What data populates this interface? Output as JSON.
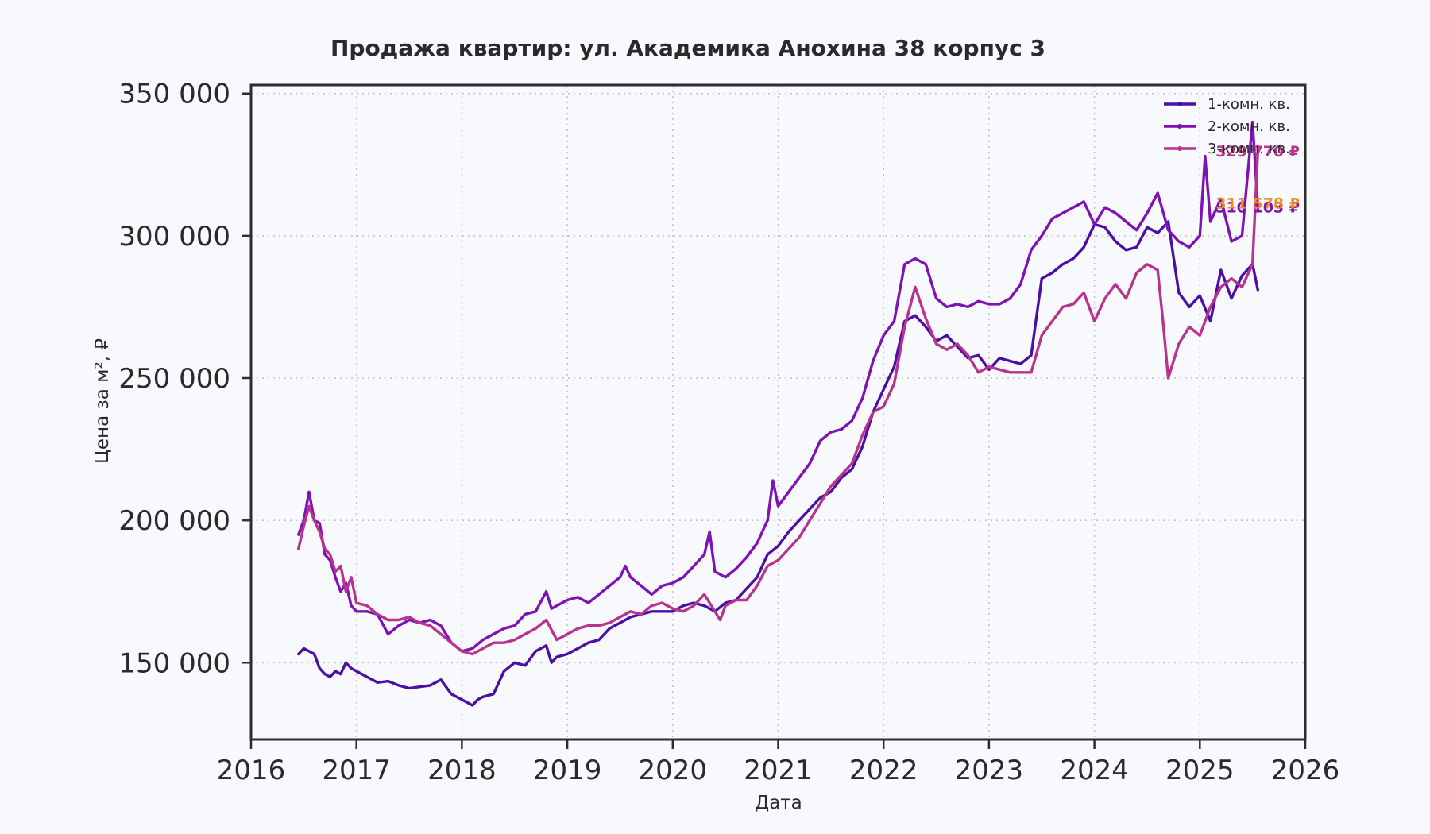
{
  "chart_data": {
    "type": "line",
    "title": "Продажа квартир: ул. Академика Анохина 38 корпус 3",
    "xlabel": "Дата",
    "ylabel": "Цена за м², ₽",
    "xlim": [
      2016.0,
      2026.0
    ],
    "ylim": [
      123000,
      353000
    ],
    "x_ticks": [
      2016,
      2017,
      2018,
      2019,
      2020,
      2021,
      2022,
      2023,
      2024,
      2025,
      2026
    ],
    "x_tick_labels": [
      "2016",
      "2017",
      "2018",
      "2019",
      "2020",
      "2021",
      "2022",
      "2023",
      "2024",
      "2025",
      "2026"
    ],
    "y_ticks": [
      150000,
      200000,
      250000,
      300000,
      350000
    ],
    "y_tick_labels": [
      "150 000",
      "200 000",
      "250 000",
      "300 000",
      "350 000"
    ],
    "grid": true,
    "legend_position": "top-right",
    "series": [
      {
        "name": "1-комн. кв.",
        "color": "#4b0fa6",
        "x": [
          2016.45,
          2016.5,
          2016.55,
          2016.6,
          2016.65,
          2016.7,
          2016.75,
          2016.8,
          2016.85,
          2016.9,
          2016.95,
          2017.0,
          2017.1,
          2017.2,
          2017.3,
          2017.4,
          2017.5,
          2017.6,
          2017.7,
          2017.8,
          2017.9,
          2018.0,
          2018.1,
          2018.15,
          2018.2,
          2018.3,
          2018.4,
          2018.5,
          2018.6,
          2018.7,
          2018.8,
          2018.85,
          2018.9,
          2019.0,
          2019.1,
          2019.2,
          2019.3,
          2019.4,
          2019.5,
          2019.6,
          2019.7,
          2019.8,
          2019.9,
          2020.0,
          2020.1,
          2020.2,
          2020.3,
          2020.4,
          2020.5,
          2020.6,
          2020.7,
          2020.8,
          2020.9,
          2021.0,
          2021.1,
          2021.2,
          2021.3,
          2021.4,
          2021.5,
          2021.6,
          2021.7,
          2021.8,
          2021.9,
          2022.0,
          2022.1,
          2022.2,
          2022.3,
          2022.4,
          2022.5,
          2022.6,
          2022.7,
          2022.8,
          2022.9,
          2023.0,
          2023.1,
          2023.2,
          2023.3,
          2023.4,
          2023.5,
          2023.6,
          2023.7,
          2023.8,
          2023.9,
          2024.0,
          2024.1,
          2024.2,
          2024.3,
          2024.4,
          2024.5,
          2024.6,
          2024.7,
          2024.8,
          2024.9,
          2025.0,
          2025.1,
          2025.2,
          2025.3,
          2025.4,
          2025.5,
          2025.55
        ],
        "y": [
          153000,
          155000,
          154000,
          153000,
          148000,
          146000,
          145000,
          147000,
          146000,
          150000,
          148000,
          147000,
          145000,
          143000,
          143500,
          142000,
          141000,
          141500,
          142000,
          144000,
          139000,
          137000,
          135000,
          137000,
          138000,
          139000,
          147000,
          150000,
          149000,
          154000,
          156000,
          150000,
          152000,
          153000,
          155000,
          157000,
          158000,
          162000,
          164000,
          166000,
          167000,
          168000,
          168000,
          168000,
          170000,
          171000,
          170000,
          168000,
          171000,
          172000,
          176000,
          180000,
          188000,
          191000,
          196000,
          200000,
          204000,
          208000,
          210000,
          215000,
          218000,
          226000,
          238000,
          246000,
          254000,
          270000,
          272000,
          268000,
          263000,
          265000,
          261000,
          257000,
          258000,
          253000,
          257000,
          256000,
          255000,
          258000,
          285000,
          287000,
          290000,
          292000,
          296000,
          304000,
          303000,
          298000,
          295000,
          296000,
          303000,
          301000,
          305000,
          280000,
          275000,
          279000,
          270000,
          288000,
          278000,
          286000,
          290000,
          281000
        ],
        "end_label": null
      },
      {
        "name": "2-комн. кв.",
        "color": "#7e12b5",
        "x": [
          2016.45,
          2016.5,
          2016.55,
          2016.6,
          2016.65,
          2016.7,
          2016.75,
          2016.8,
          2016.85,
          2016.9,
          2016.95,
          2017.0,
          2017.1,
          2017.2,
          2017.3,
          2017.4,
          2017.5,
          2017.6,
          2017.7,
          2017.8,
          2017.9,
          2018.0,
          2018.1,
          2018.2,
          2018.3,
          2018.4,
          2018.5,
          2018.6,
          2018.7,
          2018.8,
          2018.85,
          2018.9,
          2019.0,
          2019.1,
          2019.2,
          2019.3,
          2019.4,
          2019.5,
          2019.55,
          2019.6,
          2019.7,
          2019.8,
          2019.9,
          2020.0,
          2020.1,
          2020.2,
          2020.3,
          2020.35,
          2020.4,
          2020.5,
          2020.6,
          2020.7,
          2020.8,
          2020.9,
          2020.95,
          2021.0,
          2021.1,
          2021.2,
          2021.3,
          2021.4,
          2021.5,
          2021.6,
          2021.7,
          2021.8,
          2021.9,
          2022.0,
          2022.1,
          2022.2,
          2022.3,
          2022.4,
          2022.5,
          2022.6,
          2022.7,
          2022.8,
          2022.9,
          2023.0,
          2023.1,
          2023.2,
          2023.3,
          2023.4,
          2023.5,
          2023.6,
          2023.7,
          2023.8,
          2023.9,
          2024.0,
          2024.1,
          2024.2,
          2024.3,
          2024.4,
          2024.5,
          2024.6,
          2024.7,
          2024.8,
          2024.9,
          2025.0,
          2025.05,
          2025.1,
          2025.2,
          2025.3,
          2025.4,
          2025.5,
          2025.55
        ],
        "y": [
          195000,
          200000,
          210000,
          200000,
          199000,
          188000,
          186000,
          180000,
          175000,
          178000,
          170000,
          168000,
          168000,
          167000,
          160000,
          163000,
          165000,
          164000,
          165000,
          163000,
          157000,
          154000,
          155000,
          158000,
          160000,
          162000,
          163000,
          167000,
          168000,
          175000,
          169000,
          170000,
          172000,
          173000,
          171000,
          174000,
          177000,
          180000,
          184000,
          180000,
          177000,
          174000,
          177000,
          178000,
          180000,
          184000,
          188000,
          196000,
          182000,
          180000,
          183000,
          187000,
          192000,
          200000,
          214000,
          205000,
          210000,
          215000,
          220000,
          228000,
          231000,
          232000,
          235000,
          243000,
          256000,
          265000,
          270000,
          290000,
          292000,
          290000,
          278000,
          275000,
          276000,
          275000,
          277000,
          276000,
          276000,
          278000,
          283000,
          295000,
          300000,
          306000,
          308000,
          310000,
          312000,
          304000,
          310000,
          308000,
          305000,
          302000,
          308000,
          315000,
          302000,
          298000,
          296000,
          300000,
          328000,
          305000,
          313000,
          298000,
          300000,
          340000,
          310103
        ],
        "end_label": "310 103 ₽"
      },
      {
        "name": "3-комн. кв.",
        "color": "#b8338e",
        "x": [
          2016.45,
          2016.5,
          2016.55,
          2016.6,
          2016.65,
          2016.7,
          2016.75,
          2016.8,
          2016.85,
          2016.9,
          2016.95,
          2017.0,
          2017.1,
          2017.2,
          2017.3,
          2017.4,
          2017.5,
          2017.6,
          2017.7,
          2017.8,
          2017.9,
          2018.0,
          2018.1,
          2018.2,
          2018.3,
          2018.4,
          2018.5,
          2018.6,
          2018.7,
          2018.8,
          2018.9,
          2019.0,
          2019.1,
          2019.2,
          2019.3,
          2019.4,
          2019.5,
          2019.6,
          2019.7,
          2019.8,
          2019.9,
          2020.0,
          2020.1,
          2020.2,
          2020.3,
          2020.4,
          2020.45,
          2020.5,
          2020.6,
          2020.7,
          2020.8,
          2020.9,
          2021.0,
          2021.1,
          2021.2,
          2021.3,
          2021.4,
          2021.5,
          2021.6,
          2021.7,
          2021.8,
          2021.9,
          2022.0,
          2022.1,
          2022.2,
          2022.3,
          2022.4,
          2022.5,
          2022.6,
          2022.7,
          2022.8,
          2022.9,
          2023.0,
          2023.1,
          2023.2,
          2023.3,
          2023.4,
          2023.5,
          2023.6,
          2023.7,
          2023.8,
          2023.9,
          2024.0,
          2024.1,
          2024.2,
          2024.3,
          2024.4,
          2024.5,
          2024.6,
          2024.65,
          2024.7,
          2024.8,
          2024.9,
          2025.0,
          2025.1,
          2025.2,
          2025.3,
          2025.4,
          2025.5,
          2025.55
        ],
        "y": [
          190000,
          198000,
          205000,
          200000,
          196000,
          190000,
          188000,
          182000,
          184000,
          175000,
          180000,
          171000,
          170000,
          167000,
          165000,
          165000,
          166000,
          164000,
          163000,
          160000,
          157000,
          154000,
          153000,
          155000,
          157000,
          157000,
          158000,
          160000,
          162000,
          165000,
          158000,
          160000,
          162000,
          163000,
          163000,
          164000,
          166000,
          168000,
          167000,
          170000,
          171000,
          169000,
          168000,
          170000,
          174000,
          168000,
          165000,
          170000,
          172000,
          172000,
          177000,
          184000,
          186000,
          190000,
          194000,
          200000,
          206000,
          212000,
          216000,
          220000,
          230000,
          238000,
          240000,
          248000,
          268000,
          282000,
          271000,
          262000,
          260000,
          262000,
          258000,
          252000,
          254000,
          253000,
          252000,
          252000,
          252000,
          265000,
          270000,
          275000,
          276000,
          280000,
          270000,
          278000,
          283000,
          278000,
          287000,
          290000,
          288000,
          270000,
          250000,
          262000,
          268000,
          265000,
          275000,
          282000,
          285000,
          282000,
          290000,
          329770
        ],
        "end_label": "329 770 ₽"
      }
    ],
    "annotations": [
      {
        "text": "311 578 ₽",
        "value": 311578,
        "color": "#e8902c"
      }
    ]
  }
}
